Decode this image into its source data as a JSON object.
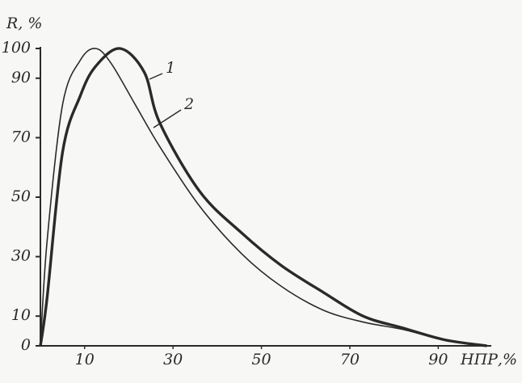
{
  "chart_data": {
    "type": "line",
    "y_label": "R, %",
    "x_label": "НПР,%",
    "xlim": [
      0,
      102
    ],
    "ylim": [
      0,
      100
    ],
    "xticks": [
      10,
      30,
      50,
      70,
      90
    ],
    "yticks": [
      0,
      10,
      30,
      50,
      70,
      90,
      100
    ],
    "series": [
      {
        "name": "1",
        "color": "#2a2a2a",
        "x": [
          0,
          1.5,
          5,
          9,
          12.5,
          18,
          23.5,
          27,
          36,
          45.5,
          54.5,
          64,
          73,
          82,
          91.5,
          101
        ],
        "values": [
          0,
          16,
          65,
          84,
          94,
          100,
          92,
          75,
          52,
          38,
          27,
          18,
          10,
          6,
          2,
          0
        ]
      },
      {
        "name": "2",
        "color": "#2a2a2a",
        "x": [
          0,
          1.5,
          5,
          9,
          12.5,
          16,
          21.5,
          27,
          36,
          45.5,
          54.5,
          64,
          73,
          82,
          91.5,
          101
        ],
        "values": [
          0,
          35,
          81,
          96,
          100,
          95,
          81,
          67,
          47,
          31,
          20,
          12,
          8,
          5.5,
          2,
          0
        ]
      }
    ]
  }
}
